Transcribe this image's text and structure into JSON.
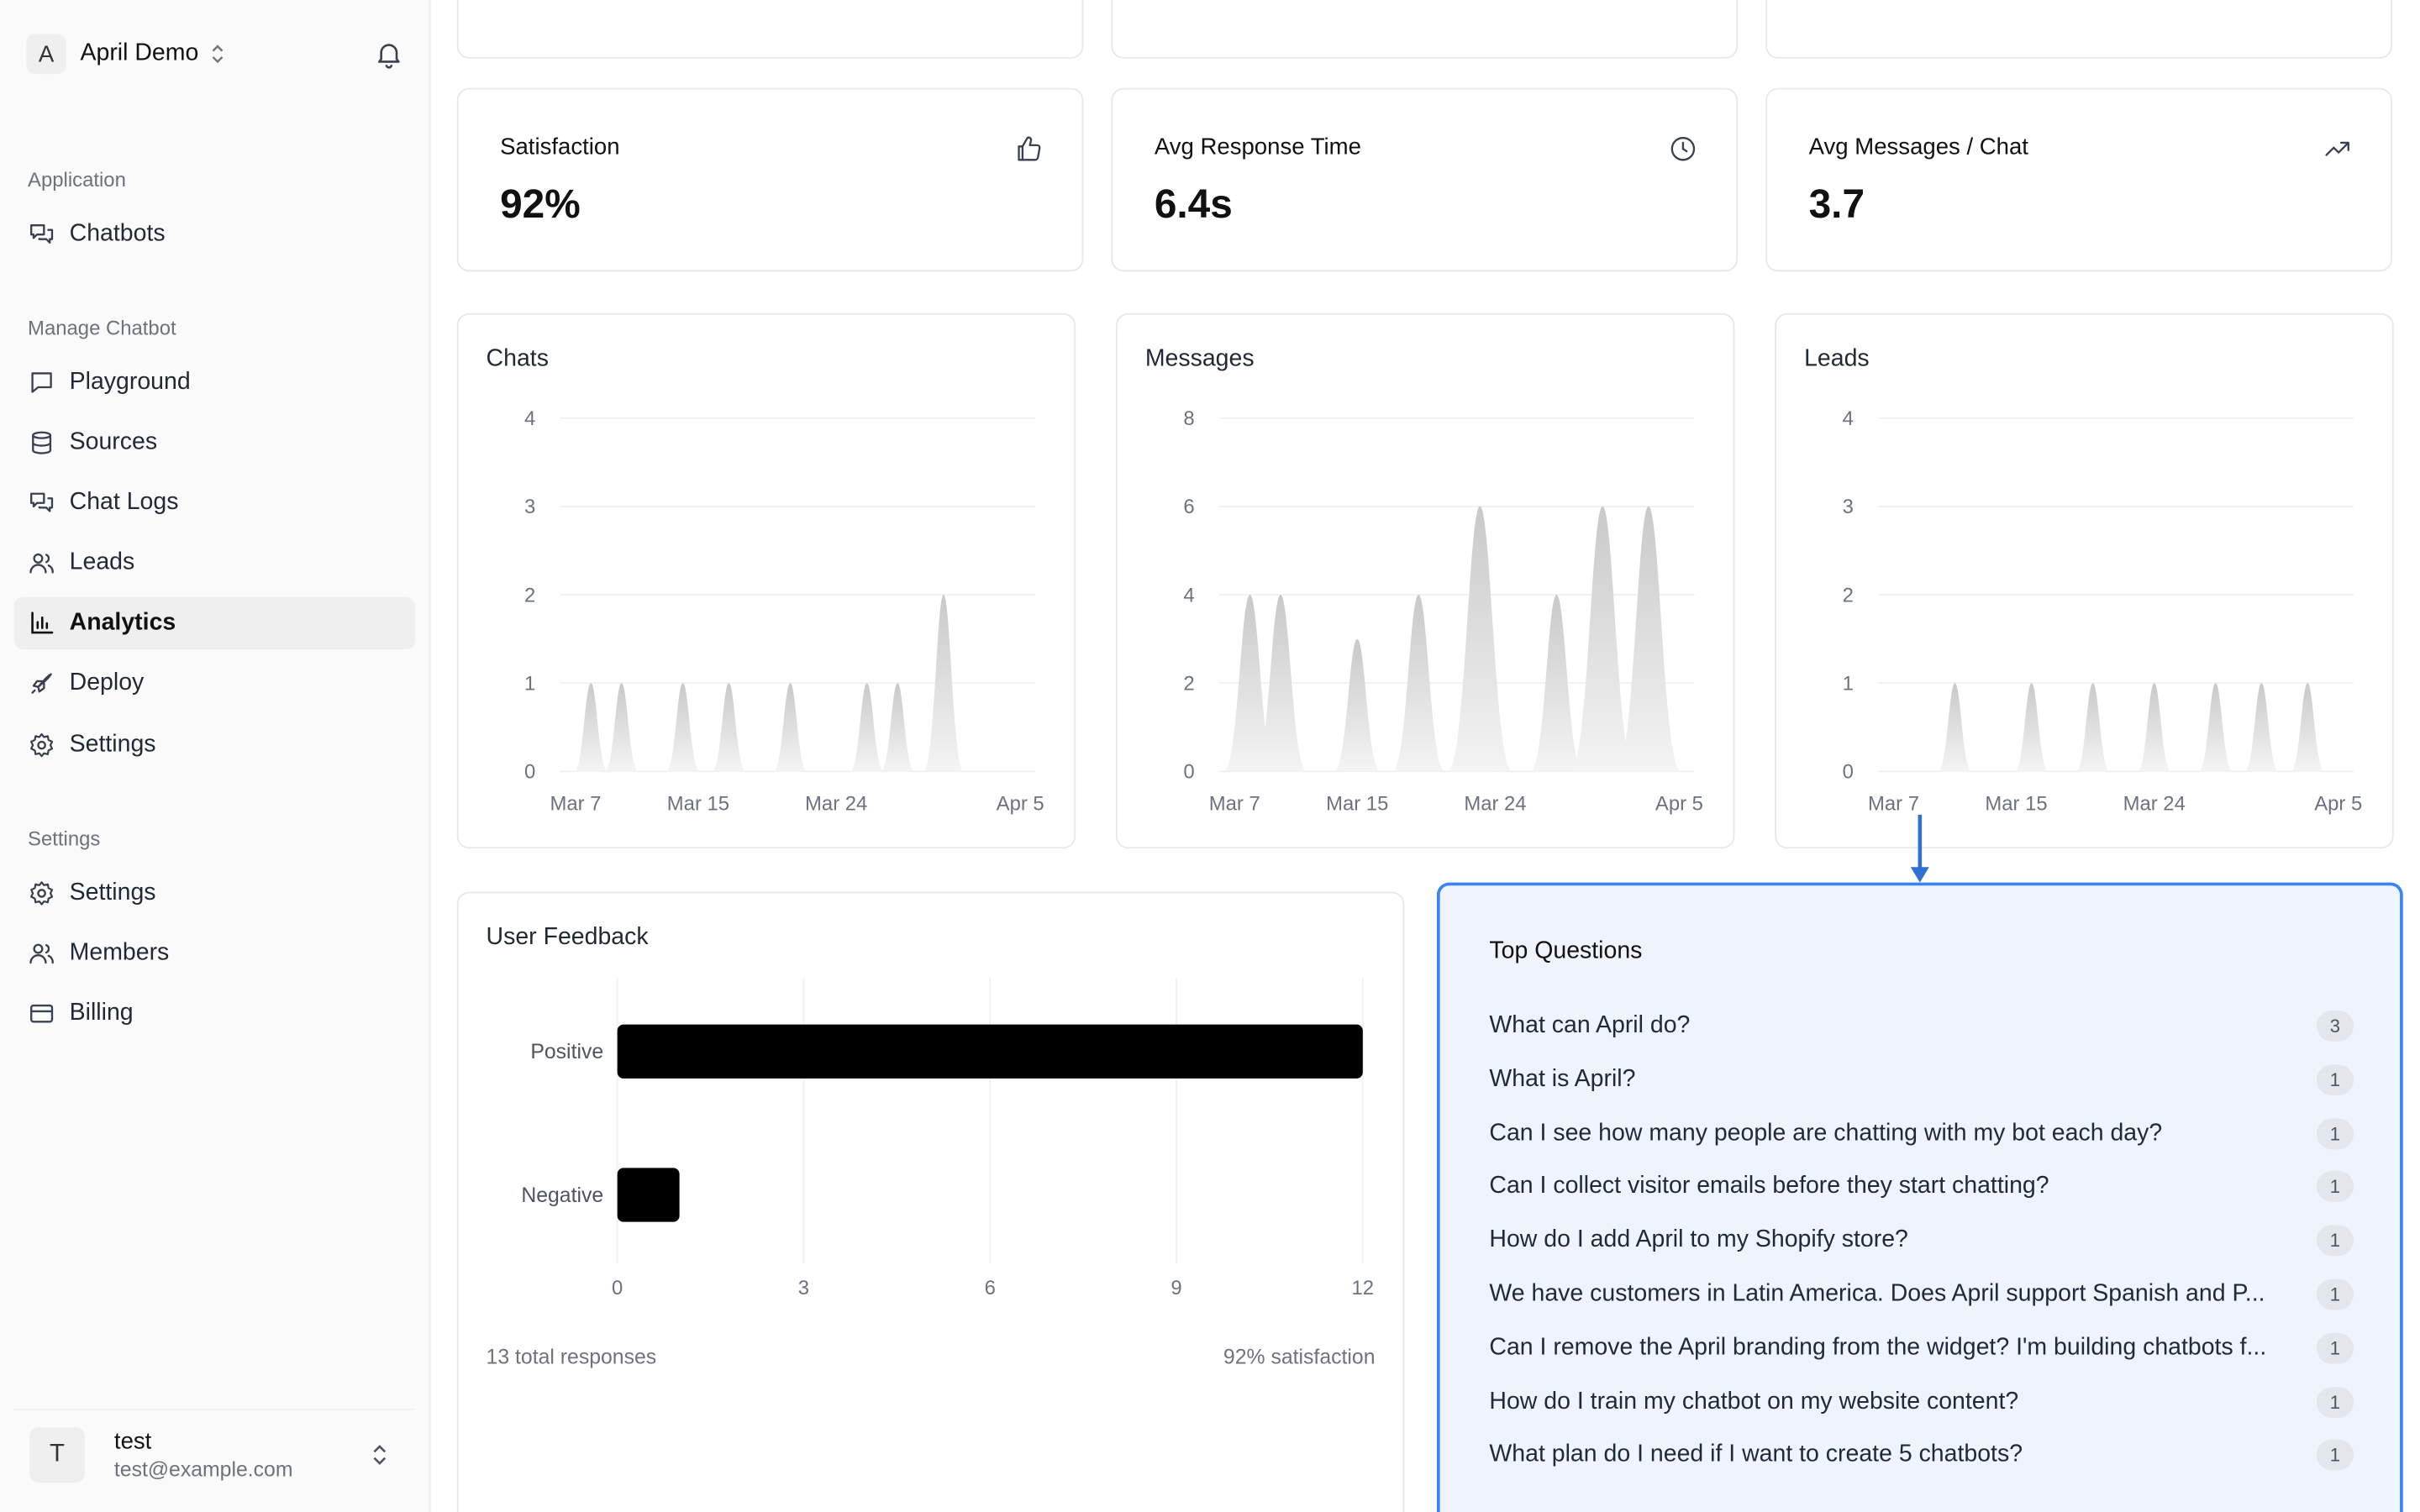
{
  "workspace": {
    "initial": "A",
    "name": "April Demo"
  },
  "sidebar": {
    "sections": [
      {
        "label": "Application",
        "items": [
          {
            "label": "Chatbots",
            "icon": "chat-bubbles-icon"
          }
        ]
      },
      {
        "label": "Manage Chatbot",
        "items": [
          {
            "label": "Playground",
            "icon": "message-square-icon"
          },
          {
            "label": "Sources",
            "icon": "database-icon"
          },
          {
            "label": "Chat Logs",
            "icon": "chat-bubbles-icon"
          },
          {
            "label": "Leads",
            "icon": "users-icon"
          },
          {
            "label": "Analytics",
            "icon": "bar-chart-icon",
            "active": true
          },
          {
            "label": "Deploy",
            "icon": "rocket-icon"
          },
          {
            "label": "Settings",
            "icon": "gear-icon"
          }
        ]
      },
      {
        "label": "Settings",
        "items": [
          {
            "label": "Settings",
            "icon": "gear-icon"
          },
          {
            "label": "Members",
            "icon": "users-icon"
          },
          {
            "label": "Billing",
            "icon": "credit-card-icon"
          }
        ]
      }
    ]
  },
  "user": {
    "initial": "T",
    "name": "test",
    "email": "test@example.com"
  },
  "stats": [
    {
      "label": "Satisfaction",
      "value": "92%",
      "icon": "thumbs-up-icon"
    },
    {
      "label": "Avg Response Time",
      "value": "6.4s",
      "icon": "clock-icon"
    },
    {
      "label": "Avg Messages / Chat",
      "value": "3.7",
      "icon": "trending-up-icon"
    }
  ],
  "chart_data": [
    {
      "type": "area",
      "title": "Chats",
      "ylim": [
        0,
        4
      ],
      "y_ticks": [
        "0",
        "1",
        "2",
        "3",
        "4"
      ],
      "x_ticks": [
        "Mar 7",
        "Mar 15",
        "Mar 24",
        "Apr 5"
      ],
      "x_range": [
        "2025-03-06",
        "2025-04-06"
      ],
      "points": [
        {
          "x": "2025-03-08",
          "y": 1
        },
        {
          "x": "2025-03-10",
          "y": 1
        },
        {
          "x": "2025-03-14",
          "y": 1
        },
        {
          "x": "2025-03-17",
          "y": 1
        },
        {
          "x": "2025-03-21",
          "y": 1
        },
        {
          "x": "2025-03-26",
          "y": 1
        },
        {
          "x": "2025-03-28",
          "y": 1
        },
        {
          "x": "2025-03-31",
          "y": 2
        }
      ]
    },
    {
      "type": "area",
      "title": "Messages",
      "ylim": [
        0,
        8
      ],
      "y_ticks": [
        "0",
        "2",
        "4",
        "6",
        "8"
      ],
      "x_ticks": [
        "Mar 7",
        "Mar 15",
        "Mar 24",
        "Apr 5"
      ],
      "x_range": [
        "2025-03-06",
        "2025-04-06"
      ],
      "points": [
        {
          "x": "2025-03-08",
          "y": 4
        },
        {
          "x": "2025-03-10",
          "y": 4
        },
        {
          "x": "2025-03-15",
          "y": 3
        },
        {
          "x": "2025-03-19",
          "y": 4
        },
        {
          "x": "2025-03-23",
          "y": 6
        },
        {
          "x": "2025-03-28",
          "y": 4
        },
        {
          "x": "2025-03-31",
          "y": 6
        },
        {
          "x": "2025-04-03",
          "y": 6
        }
      ]
    },
    {
      "type": "area",
      "title": "Leads",
      "ylim": [
        0,
        4
      ],
      "y_ticks": [
        "0",
        "1",
        "2",
        "3",
        "4"
      ],
      "x_ticks": [
        "Mar 7",
        "Mar 15",
        "Mar 24",
        "Apr 5"
      ],
      "x_range": [
        "2025-03-06",
        "2025-04-06"
      ],
      "points": [
        {
          "x": "2025-03-11",
          "y": 1
        },
        {
          "x": "2025-03-16",
          "y": 1
        },
        {
          "x": "2025-03-20",
          "y": 1
        },
        {
          "x": "2025-03-24",
          "y": 1
        },
        {
          "x": "2025-03-28",
          "y": 1
        },
        {
          "x": "2025-03-31",
          "y": 1
        },
        {
          "x": "2025-04-03",
          "y": 1
        }
      ]
    },
    {
      "type": "bar",
      "orientation": "horizontal",
      "title": "User Feedback",
      "categories": [
        "Positive",
        "Negative"
      ],
      "values": [
        12,
        1
      ],
      "xlim": [
        0,
        12
      ],
      "x_ticks": [
        "0",
        "3",
        "6",
        "9",
        "12"
      ]
    }
  ],
  "feedback": {
    "total_label": "13 total responses",
    "satisfaction_label": "92% satisfaction"
  },
  "top_questions": {
    "title": "Top Questions",
    "items": [
      {
        "q": "What can April do?",
        "count": "3"
      },
      {
        "q": "What is April?",
        "count": "1"
      },
      {
        "q": "Can I see how many people are chatting with my bot each day?",
        "count": "1"
      },
      {
        "q": "Can I collect visitor emails before they start chatting?",
        "count": "1"
      },
      {
        "q": "How do I add April to my Shopify store?",
        "count": "1"
      },
      {
        "q": "We have customers in Latin America. Does April support Spanish and P...",
        "count": "1"
      },
      {
        "q": "Can I remove the April branding from the widget? I'm building chatbots f...",
        "count": "1"
      },
      {
        "q": "How do I train my chatbot on my website content?",
        "count": "1"
      },
      {
        "q": "What plan do I need if I want to create 5 chatbots?",
        "count": "1"
      }
    ]
  },
  "colors": {
    "accent": "#3b82f6",
    "highlight_bg": "#eef3fc",
    "bar": "#000000"
  }
}
